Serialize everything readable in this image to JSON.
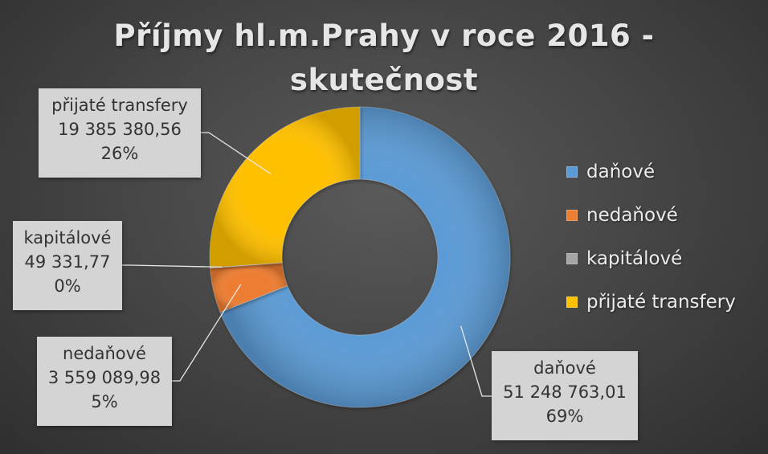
{
  "chart_data": {
    "type": "pie",
    "donut": true,
    "title_lines": [
      "Příjmy hl.m.Prahy v roce 2016 -",
      "skutečnost"
    ],
    "slices": [
      {
        "name": "daňové",
        "value": 51248763.01,
        "value_label": "51 248 763,01",
        "percent_label": "69%",
        "color": "#5b9bd5"
      },
      {
        "name": "nedaňové",
        "value": 3559089.98,
        "value_label": "3 559 089,98",
        "percent_label": "5%",
        "color": "#ed7d31"
      },
      {
        "name": "kapitálové",
        "value": 49331.77,
        "value_label": "49 331,77",
        "percent_label": "0%",
        "color": "#a5a5a5"
      },
      {
        "name": "přijaté transfery",
        "value": 19385380.56,
        "value_label": "19 385 380,56",
        "percent_label": "26%",
        "color": "#ffc000"
      }
    ],
    "legend_placement": "right",
    "start_angle": "top",
    "direction": "clockwise"
  }
}
